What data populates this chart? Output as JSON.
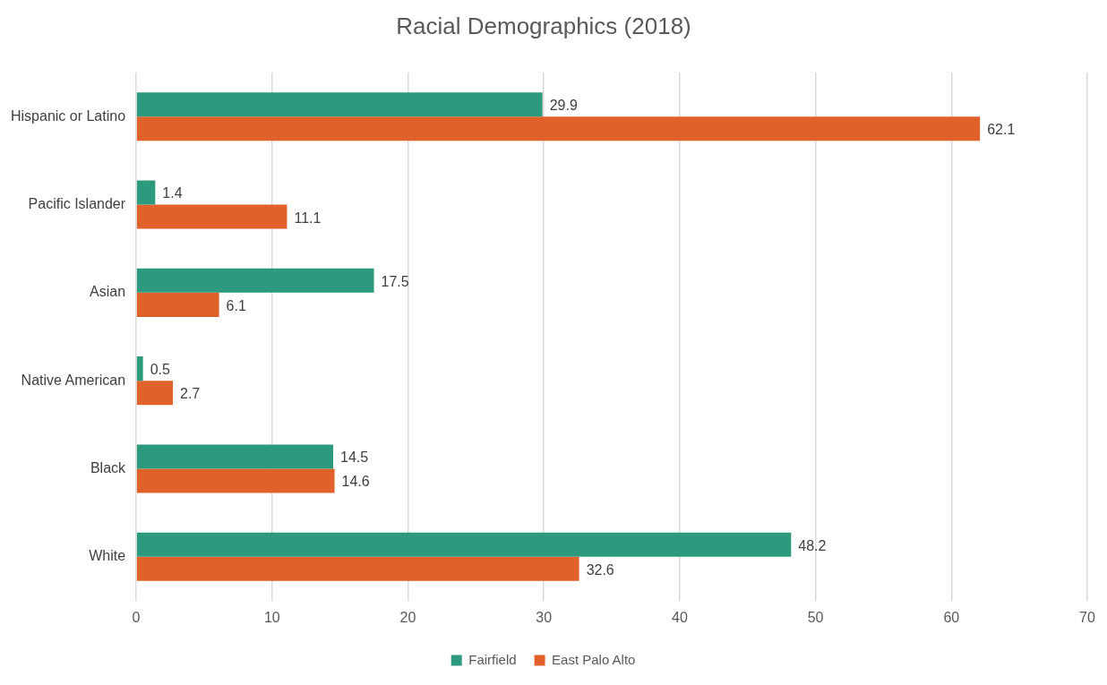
{
  "chart_data": {
    "type": "bar",
    "title": "Racial Demographics (2018)",
    "orientation": "horizontal",
    "categories": [
      "Hispanic or Latino",
      "Pacific Islander",
      "Asian",
      "Native American",
      "Black",
      "White"
    ],
    "series": [
      {
        "name": "Fairfield",
        "color": "#2e9a7d",
        "values": [
          29.9,
          1.4,
          17.5,
          0.5,
          14.5,
          48.2
        ]
      },
      {
        "name": "East Palo Alto",
        "color": "#e0622a",
        "values": [
          62.1,
          11.1,
          6.1,
          2.7,
          14.6,
          32.6
        ]
      }
    ],
    "xlim": [
      0,
      70
    ],
    "xticks": [
      0,
      10,
      20,
      30,
      40,
      50,
      60,
      70
    ],
    "grid": "x",
    "legend": "bottom",
    "data_labels": true
  }
}
